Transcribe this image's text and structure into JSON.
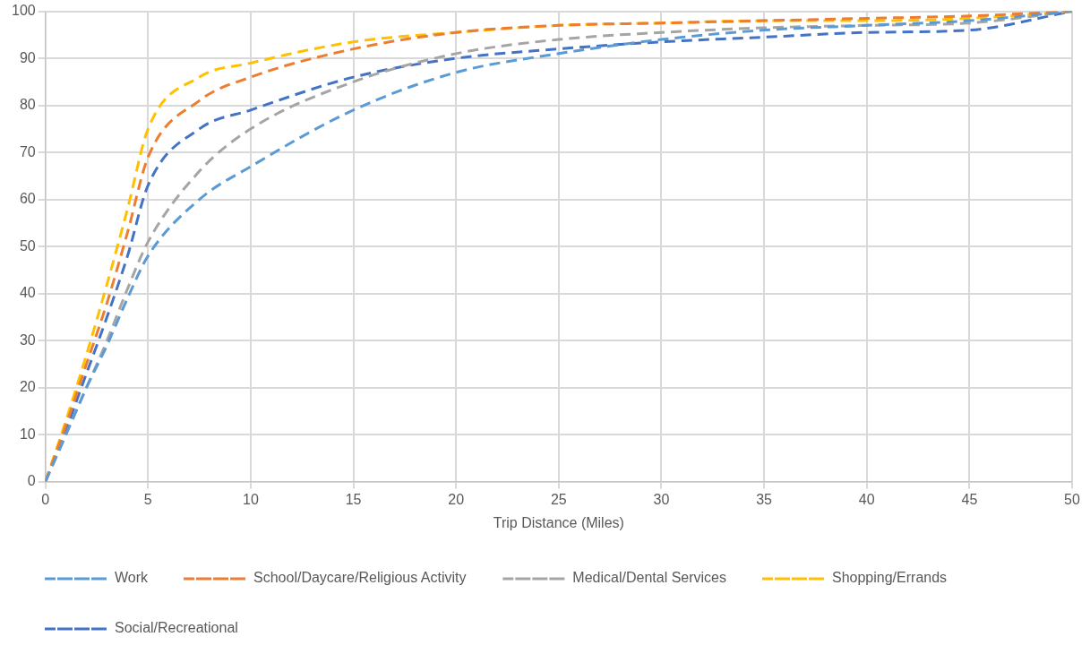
{
  "chart_data": {
    "type": "line",
    "xlabel": "Trip Distance (Miles)",
    "x": [
      0,
      1,
      2,
      3,
      4,
      5,
      7.5,
      10,
      15,
      20,
      25,
      30,
      35,
      40,
      45,
      50
    ],
    "series": [
      {
        "name": "Work",
        "color": "#5b9bd5",
        "values": [
          0,
          10,
          20,
          29,
          39,
          48,
          60,
          67,
          79,
          87,
          91,
          94,
          96,
          97,
          98,
          100
        ]
      },
      {
        "name": "School/Daycare/Religious Activity",
        "color": "#ed7d31",
        "values": [
          0,
          12,
          25,
          38,
          53,
          69,
          81,
          86,
          92,
          95.5,
          97,
          97.5,
          98,
          98.5,
          99,
          100
        ]
      },
      {
        "name": "Medical/Dental Services",
        "color": "#a5a5a5",
        "values": [
          0,
          10,
          20,
          30,
          41,
          51,
          66,
          75,
          85,
          91,
          94,
          95.5,
          96.5,
          97,
          97.5,
          100
        ]
      },
      {
        "name": "Shopping/Errands",
        "color": "#ffc000",
        "values": [
          0,
          13,
          27,
          42,
          58,
          75,
          86,
          89,
          93.5,
          95.5,
          97,
          97.5,
          98,
          98,
          98.5,
          100
        ]
      },
      {
        "name": "Social/Recreational",
        "color": "#4472c4",
        "values": [
          0,
          11,
          23,
          35,
          48,
          63,
          75,
          79,
          86,
          90,
          92,
          93.5,
          94.5,
          95.5,
          96,
          100
        ]
      }
    ],
    "xlim": [
      0,
      50
    ],
    "xticks": [
      0,
      5,
      10,
      15,
      20,
      25,
      30,
      35,
      40,
      45,
      50
    ],
    "ylim": [
      0,
      100
    ],
    "yticks": [
      0,
      10,
      20,
      30,
      40,
      50,
      60,
      70,
      80,
      90,
      100
    ],
    "grid": true,
    "legend": "bottom",
    "marker": "none",
    "line_style": "dashed"
  }
}
